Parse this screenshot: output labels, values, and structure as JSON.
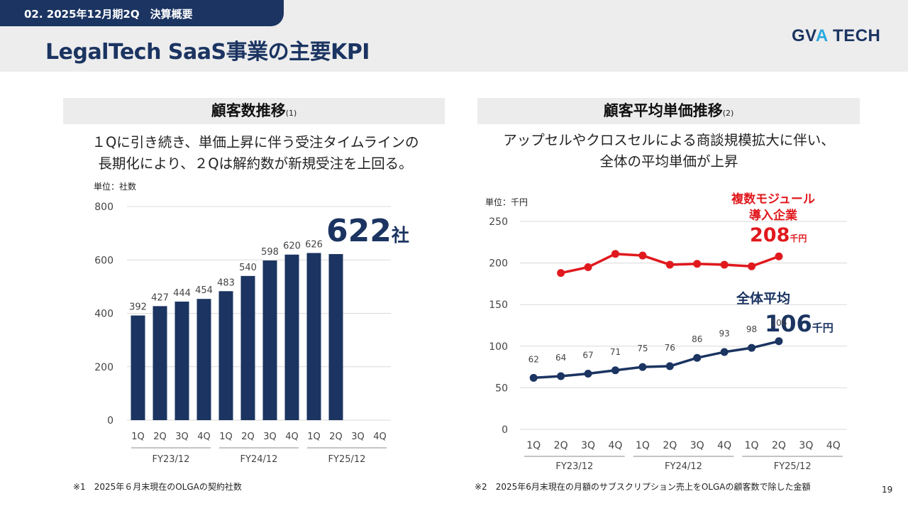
{
  "header": {
    "section": "02. 2025年12月期2Q　決算概要",
    "title": "LegalTech SaaS事業の主要KPI",
    "logo_a": "GV",
    "logo_accent": "A",
    "logo_b": " TECH"
  },
  "left": {
    "heading": "顧客数推移",
    "heading_note": "(1)",
    "subtitle_line1": "１Qに引き続き、単価上昇に伴う受注タイムラインの",
    "subtitle_line2": "長期化により、２Qは解約数が新規受注を上回る。",
    "unit": "単位：社数",
    "highlight_value": "622",
    "highlight_unit": "社",
    "footnote": "※1　2025年６月末現在のOLGAの契約社数"
  },
  "right": {
    "heading": "顧客平均単価推移",
    "heading_note": "(2)",
    "subtitle_line1": "アップセルやクロスセルによる商談規模拡大に伴い、",
    "subtitle_line2": "全体の平均単価が上昇",
    "unit": "単位：千円",
    "multi_label_line1": "複数モジュール",
    "multi_label_line2": "導入企業",
    "multi_value": "208",
    "multi_unit": "千円",
    "overall_label": "全体平均",
    "overall_value": "106",
    "overall_unit": "千円",
    "footnote": "※2　2025年6月末現在の月額のサブスクリプション売上をOLGAの顧客数で除した金額"
  },
  "page_number": "19",
  "colors": {
    "navy": "#1b3461",
    "red": "#e0191e",
    "header_bg": "#ededed",
    "logo_accent": "#29a9e0"
  },
  "chart_data": [
    {
      "type": "bar",
      "categories": [
        "1Q",
        "2Q",
        "3Q",
        "4Q",
        "1Q",
        "2Q",
        "3Q",
        "4Q",
        "1Q",
        "2Q",
        "3Q",
        "4Q"
      ],
      "groups": [
        "FY23/12",
        "FY24/12",
        "FY25/12"
      ],
      "values": [
        392,
        427,
        444,
        454,
        483,
        540,
        598,
        620,
        626,
        622,
        null,
        null
      ],
      "data_labels": [
        "392",
        "427",
        "444",
        "454",
        "483",
        "540",
        "598",
        "620",
        "626",
        "",
        "",
        ""
      ],
      "yticks": [
        0,
        200,
        400,
        600,
        800
      ],
      "ylim": [
        0,
        800
      ],
      "grid": true,
      "color": "#1b3461"
    },
    {
      "type": "line",
      "categories": [
        "1Q",
        "2Q",
        "3Q",
        "4Q",
        "1Q",
        "2Q",
        "3Q",
        "4Q",
        "1Q",
        "2Q",
        "3Q",
        "4Q"
      ],
      "groups": [
        "FY23/12",
        "FY24/12",
        "FY25/12"
      ],
      "series": [
        {
          "name": "複数モジュール導入企業",
          "color": "#e0191e",
          "values": [
            null,
            188,
            195,
            211,
            209,
            198,
            199,
            198,
            196,
            208,
            null,
            null
          ],
          "show_labels": false
        },
        {
          "name": "全体平均",
          "color": "#1b3461",
          "values": [
            62,
            64,
            67,
            71,
            75,
            76,
            86,
            93,
            98,
            106,
            null,
            null
          ],
          "show_labels": true
        }
      ],
      "yticks": [
        0,
        50,
        100,
        150,
        200,
        250
      ],
      "ylim": [
        0,
        250
      ],
      "grid": true
    }
  ]
}
